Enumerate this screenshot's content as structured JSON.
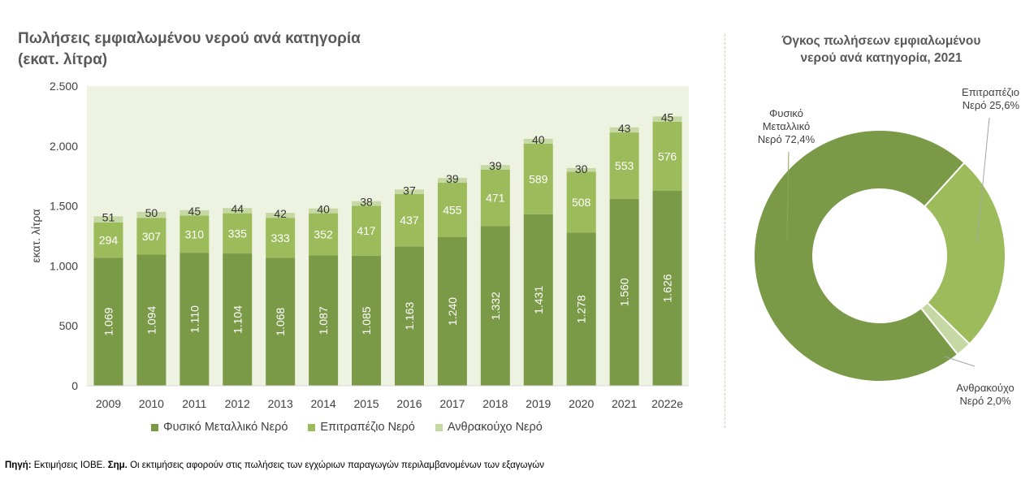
{
  "source": {
    "label1": "Πηγή:",
    "text1": " Εκτιμήσεις ΙΟΒΕ. ",
    "label2": "Σημ.",
    "text2": " Οι εκτιμήσεις αφορούν στις πωλήσεις των εγχώριων παραγωγών περιλαμβανομένων των εξαγωγών"
  },
  "chart_data": [
    {
      "type": "bar",
      "stacked": true,
      "title": "Πωλήσεις εμφιαλωμένου νερού ανά κατηγορία (εκατ. λίτρα)",
      "title_lines": [
        "Πωλήσεις εμφιαλωμένου νερού ανά κατηγορία",
        "(εκατ. λίτρα)"
      ],
      "xlabel": "",
      "ylabel": "εκατ. λίτρα",
      "ylim": [
        0,
        2500
      ],
      "yticks": [
        0,
        500,
        1000,
        1500,
        2000,
        2500
      ],
      "ytick_labels": [
        "0",
        "500",
        "1.000",
        "1.500",
        "2.000",
        "2.500"
      ],
      "legend_position": "bottom",
      "categories": [
        "2009",
        "2010",
        "2011",
        "2012",
        "2013",
        "2014",
        "2015",
        "2016",
        "2017",
        "2018",
        "2019",
        "2020",
        "2021",
        "2022e"
      ],
      "series": [
        {
          "name": "Φυσικό Μεταλλικό Νερό",
          "color": "#7b9a48",
          "label_color": "#ffffff",
          "values": [
            1069,
            1094,
            1110,
            1104,
            1068,
            1087,
            1085,
            1163,
            1240,
            1332,
            1431,
            1278,
            1560,
            1626
          ],
          "labels": [
            "1.069",
            "1.094",
            "1.110",
            "1.104",
            "1.068",
            "1.087",
            "1.085",
            "1.163",
            "1.240",
            "1.332",
            "1.431",
            "1.278",
            "1.560",
            "1.626"
          ]
        },
        {
          "name": "Επιτραπέζιο Νερό",
          "color": "#9cbb5a",
          "label_color": "#ffffff",
          "values": [
            294,
            307,
            310,
            335,
            333,
            352,
            417,
            437,
            455,
            471,
            589,
            508,
            553,
            576
          ],
          "labels": [
            "294",
            "307",
            "310",
            "335",
            "333",
            "352",
            "417",
            "437",
            "455",
            "471",
            "589",
            "508",
            "553",
            "576"
          ]
        },
        {
          "name": "Ανθρακούχο Νερό",
          "color": "#c6d9a5",
          "label_color": "#333333",
          "values": [
            51,
            50,
            45,
            44,
            42,
            40,
            38,
            37,
            39,
            39,
            40,
            30,
            43,
            45
          ],
          "labels": [
            "51",
            "50",
            "45",
            "44",
            "42",
            "40",
            "38",
            "37",
            "39",
            "39",
            "40",
            "30",
            "43",
            "45"
          ]
        }
      ]
    },
    {
      "type": "pie",
      "donut": true,
      "title": "Όγκος πωλήσεων εμφιαλωμένου νερού ανά κατηγορία, 2021",
      "title_lines": [
        "Όγκος πωλήσεων εμφιαλωμένου",
        "νερού ανά κατηγορία, 2021"
      ],
      "slices": [
        {
          "name": "Επιτραπέζιο Νερό",
          "value": 25.6,
          "color": "#9cbb5a",
          "label_lines": [
            "Επιτραπέζιο",
            "Νερό 25,6%"
          ]
        },
        {
          "name": "Ανθρακούχο Νερό",
          "value": 2.0,
          "color": "#c6d9a5",
          "label_lines": [
            "Ανθρακούχο",
            "Νερό 2,0%"
          ]
        },
        {
          "name": "Φυσικό Μεταλλικό Νερό",
          "value": 72.4,
          "color": "#7b9a48",
          "label_lines": [
            "Φυσικό",
            "Μεταλλικό",
            "Νερό 72,4%"
          ]
        }
      ]
    }
  ]
}
